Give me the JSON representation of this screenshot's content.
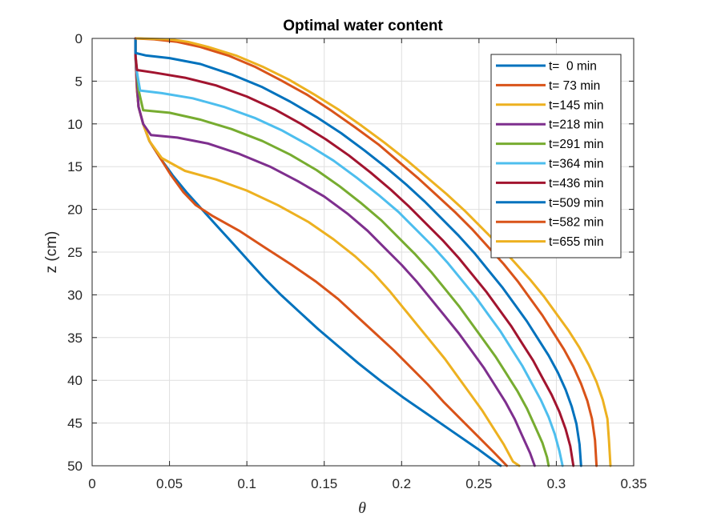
{
  "chart_data": {
    "type": "line",
    "title": "Optimal water content",
    "xlabel": "θ",
    "ylabel": "z (cm)",
    "xlim": [
      0,
      0.35
    ],
    "ylim": [
      0,
      50
    ],
    "y_reversed": true,
    "grid": true,
    "legend_position": "top-right",
    "xticks": [
      "0",
      "0.05",
      "0.1",
      "0.15",
      "0.2",
      "0.25",
      "0.3",
      "0.35"
    ],
    "yticks": [
      "0",
      "5",
      "10",
      "15",
      "20",
      "25",
      "30",
      "35",
      "40",
      "45",
      "50"
    ],
    "series": [
      {
        "name": "t=  0 min",
        "color": "#0072BD",
        "points": [
          [
            0.028,
            0
          ],
          [
            0.028,
            1
          ],
          [
            0.028,
            2
          ],
          [
            0.0285,
            4
          ],
          [
            0.029,
            6
          ],
          [
            0.03,
            8
          ],
          [
            0.033,
            10
          ],
          [
            0.037,
            12
          ],
          [
            0.044,
            14
          ],
          [
            0.052,
            16
          ],
          [
            0.061,
            18
          ],
          [
            0.071,
            20
          ],
          [
            0.081,
            22
          ],
          [
            0.091,
            24
          ],
          [
            0.101,
            26
          ],
          [
            0.111,
            28
          ],
          [
            0.122,
            30
          ],
          [
            0.134,
            32
          ],
          [
            0.146,
            34
          ],
          [
            0.159,
            36
          ],
          [
            0.172,
            38
          ],
          [
            0.186,
            40
          ],
          [
            0.201,
            42
          ],
          [
            0.217,
            44
          ],
          [
            0.233,
            46
          ],
          [
            0.249,
            48
          ],
          [
            0.264,
            50
          ]
        ]
      },
      {
        "name": "t= 73 min",
        "color": "#D95319",
        "points": [
          [
            0.028,
            0
          ],
          [
            0.028,
            1
          ],
          [
            0.028,
            2
          ],
          [
            0.0285,
            4
          ],
          [
            0.029,
            6
          ],
          [
            0.03,
            8
          ],
          [
            0.033,
            10
          ],
          [
            0.037,
            12
          ],
          [
            0.044,
            14
          ],
          [
            0.051,
            16
          ],
          [
            0.059,
            18
          ],
          [
            0.067,
            19.5
          ],
          [
            0.078,
            20.8
          ],
          [
            0.095,
            22.5
          ],
          [
            0.112,
            24.5
          ],
          [
            0.129,
            26.5
          ],
          [
            0.145,
            28.5
          ],
          [
            0.159,
            30.5
          ],
          [
            0.171,
            32.5
          ],
          [
            0.183,
            34.5
          ],
          [
            0.195,
            36.5
          ],
          [
            0.206,
            38.5
          ],
          [
            0.217,
            40.5
          ],
          [
            0.227,
            42.5
          ],
          [
            0.238,
            44.5
          ],
          [
            0.249,
            46.5
          ],
          [
            0.26,
            48.5
          ],
          [
            0.268,
            50
          ]
        ]
      },
      {
        "name": "t=145 min",
        "color": "#EDB120",
        "points": [
          [
            0.028,
            0
          ],
          [
            0.028,
            2
          ],
          [
            0.029,
            5
          ],
          [
            0.03,
            8
          ],
          [
            0.033,
            10
          ],
          [
            0.037,
            12
          ],
          [
            0.045,
            14
          ],
          [
            0.06,
            15.5
          ],
          [
            0.08,
            16.5
          ],
          [
            0.1,
            17.8
          ],
          [
            0.12,
            19.5
          ],
          [
            0.14,
            21.5
          ],
          [
            0.156,
            23.5
          ],
          [
            0.17,
            25.5
          ],
          [
            0.182,
            27.5
          ],
          [
            0.192,
            29.5
          ],
          [
            0.201,
            31.5
          ],
          [
            0.21,
            33.5
          ],
          [
            0.219,
            35.5
          ],
          [
            0.228,
            37.5
          ],
          [
            0.236,
            39.5
          ],
          [
            0.244,
            41.5
          ],
          [
            0.252,
            43.5
          ],
          [
            0.259,
            45.5
          ],
          [
            0.266,
            47.5
          ],
          [
            0.272,
            49.5
          ],
          [
            0.276,
            50
          ]
        ]
      },
      {
        "name": "t=218 min",
        "color": "#7E2F8E",
        "points": [
          [
            0.028,
            0
          ],
          [
            0.028,
            2
          ],
          [
            0.029,
            5
          ],
          [
            0.03,
            8
          ],
          [
            0.033,
            10
          ],
          [
            0.038,
            11.3
          ],
          [
            0.055,
            11.6
          ],
          [
            0.075,
            12.3
          ],
          [
            0.095,
            13.5
          ],
          [
            0.115,
            15
          ],
          [
            0.133,
            16.7
          ],
          [
            0.15,
            18.5
          ],
          [
            0.165,
            20.5
          ],
          [
            0.178,
            22.5
          ],
          [
            0.189,
            24.5
          ],
          [
            0.2,
            26.5
          ],
          [
            0.21,
            28.5
          ],
          [
            0.219,
            30.5
          ],
          [
            0.228,
            32.5
          ],
          [
            0.237,
            34.5
          ],
          [
            0.245,
            36.5
          ],
          [
            0.253,
            38.5
          ],
          [
            0.26,
            40.5
          ],
          [
            0.267,
            42.5
          ],
          [
            0.273,
            44.5
          ],
          [
            0.278,
            46.5
          ],
          [
            0.283,
            48.5
          ],
          [
            0.286,
            50
          ]
        ]
      },
      {
        "name": "t=291 min",
        "color": "#77AC30",
        "points": [
          [
            0.028,
            0
          ],
          [
            0.028,
            2
          ],
          [
            0.029,
            4
          ],
          [
            0.03,
            6
          ],
          [
            0.033,
            8.4
          ],
          [
            0.05,
            8.7
          ],
          [
            0.07,
            9.5
          ],
          [
            0.09,
            10.6
          ],
          [
            0.11,
            12
          ],
          [
            0.128,
            13.6
          ],
          [
            0.145,
            15.4
          ],
          [
            0.16,
            17.3
          ],
          [
            0.174,
            19.3
          ],
          [
            0.187,
            21.3
          ],
          [
            0.198,
            23.3
          ],
          [
            0.209,
            25.3
          ],
          [
            0.219,
            27.3
          ],
          [
            0.228,
            29.3
          ],
          [
            0.237,
            31.3
          ],
          [
            0.245,
            33.3
          ],
          [
            0.253,
            35.3
          ],
          [
            0.261,
            37.3
          ],
          [
            0.268,
            39.3
          ],
          [
            0.275,
            41.3
          ],
          [
            0.281,
            43.3
          ],
          [
            0.286,
            45.3
          ],
          [
            0.291,
            47.3
          ],
          [
            0.294,
            49
          ],
          [
            0.295,
            50
          ]
        ]
      },
      {
        "name": "t=364 min",
        "color": "#4DBEEE",
        "points": [
          [
            0.028,
            0
          ],
          [
            0.028,
            2
          ],
          [
            0.029,
            4
          ],
          [
            0.031,
            6.1
          ],
          [
            0.045,
            6.4
          ],
          [
            0.065,
            7
          ],
          [
            0.085,
            8
          ],
          [
            0.105,
            9.3
          ],
          [
            0.123,
            10.8
          ],
          [
            0.14,
            12.5
          ],
          [
            0.156,
            14.3
          ],
          [
            0.171,
            16.3
          ],
          [
            0.185,
            18.3
          ],
          [
            0.198,
            20.3
          ],
          [
            0.209,
            22.3
          ],
          [
            0.22,
            24.3
          ],
          [
            0.23,
            26.3
          ],
          [
            0.239,
            28.3
          ],
          [
            0.248,
            30.3
          ],
          [
            0.256,
            32.3
          ],
          [
            0.264,
            34.3
          ],
          [
            0.271,
            36.3
          ],
          [
            0.278,
            38.3
          ],
          [
            0.284,
            40.3
          ],
          [
            0.29,
            42.3
          ],
          [
            0.295,
            44.3
          ],
          [
            0.299,
            46.3
          ],
          [
            0.302,
            48.3
          ],
          [
            0.304,
            50
          ]
        ]
      },
      {
        "name": "t=436 min",
        "color": "#A2142F",
        "points": [
          [
            0.028,
            0
          ],
          [
            0.028,
            2
          ],
          [
            0.029,
            3.7
          ],
          [
            0.04,
            4
          ],
          [
            0.06,
            4.6
          ],
          [
            0.08,
            5.5
          ],
          [
            0.1,
            6.8
          ],
          [
            0.118,
            8.3
          ],
          [
            0.135,
            10
          ],
          [
            0.151,
            11.8
          ],
          [
            0.166,
            13.7
          ],
          [
            0.18,
            15.7
          ],
          [
            0.193,
            17.7
          ],
          [
            0.205,
            19.7
          ],
          [
            0.216,
            21.7
          ],
          [
            0.227,
            23.7
          ],
          [
            0.237,
            25.7
          ],
          [
            0.246,
            27.7
          ],
          [
            0.255,
            29.7
          ],
          [
            0.263,
            31.7
          ],
          [
            0.271,
            33.7
          ],
          [
            0.278,
            35.7
          ],
          [
            0.285,
            37.7
          ],
          [
            0.291,
            39.7
          ],
          [
            0.297,
            41.7
          ],
          [
            0.302,
            43.7
          ],
          [
            0.306,
            45.7
          ],
          [
            0.309,
            47.7
          ],
          [
            0.311,
            50
          ]
        ]
      },
      {
        "name": "t=509 min",
        "color": "#0072BD",
        "points": [
          [
            0.028,
            0
          ],
          [
            0.028,
            1.7
          ],
          [
            0.035,
            2
          ],
          [
            0.05,
            2.3
          ],
          [
            0.07,
            3
          ],
          [
            0.09,
            4.2
          ],
          [
            0.11,
            5.7
          ],
          [
            0.128,
            7.4
          ],
          [
            0.145,
            9.2
          ],
          [
            0.161,
            11.1
          ],
          [
            0.176,
            13.1
          ],
          [
            0.19,
            15.1
          ],
          [
            0.203,
            17.1
          ],
          [
            0.215,
            19.1
          ],
          [
            0.226,
            21.1
          ],
          [
            0.237,
            23.1
          ],
          [
            0.247,
            25.1
          ],
          [
            0.256,
            27.1
          ],
          [
            0.265,
            29.1
          ],
          [
            0.273,
            31.1
          ],
          [
            0.281,
            33.1
          ],
          [
            0.288,
            35.1
          ],
          [
            0.295,
            37.1
          ],
          [
            0.301,
            39.1
          ],
          [
            0.306,
            41.1
          ],
          [
            0.31,
            43.1
          ],
          [
            0.313,
            45.1
          ],
          [
            0.315,
            47.5
          ],
          [
            0.316,
            50
          ]
        ]
      },
      {
        "name": "t=582 min",
        "color": "#D95319",
        "points": [
          [
            0.028,
            0
          ],
          [
            0.04,
            0.1
          ],
          [
            0.055,
            0.4
          ],
          [
            0.07,
            1
          ],
          [
            0.088,
            2
          ],
          [
            0.105,
            3.3
          ],
          [
            0.122,
            4.9
          ],
          [
            0.139,
            6.6
          ],
          [
            0.155,
            8.5
          ],
          [
            0.17,
            10.4
          ],
          [
            0.185,
            12.4
          ],
          [
            0.198,
            14.4
          ],
          [
            0.211,
            16.4
          ],
          [
            0.223,
            18.4
          ],
          [
            0.235,
            20.4
          ],
          [
            0.246,
            22.4
          ],
          [
            0.256,
            24.4
          ],
          [
            0.266,
            26.4
          ],
          [
            0.275,
            28.4
          ],
          [
            0.283,
            30.4
          ],
          [
            0.291,
            32.4
          ],
          [
            0.298,
            34.4
          ],
          [
            0.305,
            36.4
          ],
          [
            0.311,
            38.4
          ],
          [
            0.316,
            40.4
          ],
          [
            0.32,
            42.4
          ],
          [
            0.323,
            44.5
          ],
          [
            0.325,
            47
          ],
          [
            0.326,
            50
          ]
        ]
      },
      {
        "name": "t=655 min",
        "color": "#EDB120",
        "points": [
          [
            0.029,
            0
          ],
          [
            0.05,
            0.1
          ],
          [
            0.062,
            0.4
          ],
          [
            0.075,
            1
          ],
          [
            0.093,
            2
          ],
          [
            0.11,
            3.3
          ],
          [
            0.127,
            4.8
          ],
          [
            0.143,
            6.5
          ],
          [
            0.159,
            8.3
          ],
          [
            0.174,
            10.2
          ],
          [
            0.189,
            12.2
          ],
          [
            0.203,
            14.2
          ],
          [
            0.216,
            16.2
          ],
          [
            0.229,
            18.2
          ],
          [
            0.241,
            20.2
          ],
          [
            0.252,
            22.2
          ],
          [
            0.263,
            24.2
          ],
          [
            0.273,
            26.2
          ],
          [
            0.283,
            28.2
          ],
          [
            0.292,
            30.2
          ],
          [
            0.3,
            32.2
          ],
          [
            0.308,
            34.2
          ],
          [
            0.315,
            36.2
          ],
          [
            0.321,
            38.2
          ],
          [
            0.326,
            40.2
          ],
          [
            0.33,
            42.3
          ],
          [
            0.333,
            44.5
          ],
          [
            0.334,
            47
          ],
          [
            0.335,
            50
          ]
        ]
      }
    ]
  }
}
